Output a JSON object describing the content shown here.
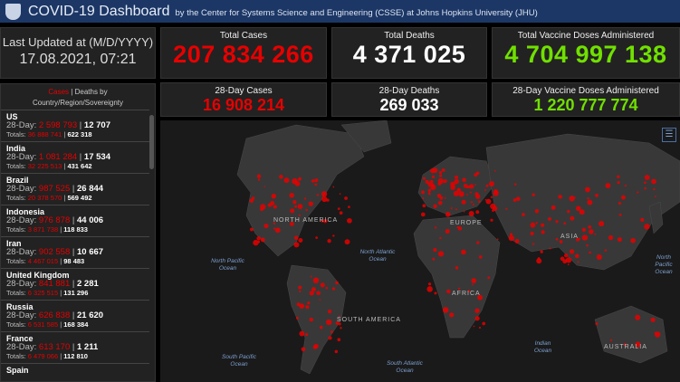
{
  "header": {
    "title": "COVID-19 Dashboard",
    "subtitle": "by the Center for Systems Science and Engineering (CSSE) at Johns Hopkins University (JHU)"
  },
  "last_updated": {
    "label": "Last Updated at (M/D/YYYY)",
    "value": "17.08.2021, 07:21"
  },
  "totals": {
    "cases_label": "Total Cases",
    "cases": "207 834 266",
    "deaths_label": "Total Deaths",
    "deaths": "4 371 025",
    "vaccines_label": "Total Vaccine Doses Administered",
    "vaccines": "4 704 997 138"
  },
  "day28": {
    "cases_label": "28-Day Cases",
    "cases": "16 908 214",
    "deaths_label": "28-Day Deaths",
    "deaths": "269 033",
    "vaccines_label": "28-Day Vaccine Doses Administered",
    "vaccines": "1 220 777 774"
  },
  "sidebar": {
    "cases_word": "Cases",
    "sep": " | ",
    "deaths_word": "Deaths by",
    "sub": "Country/Region/Sovereignty",
    "day_prefix": "28-Day: ",
    "tot_prefix": "Totals: ",
    "items": [
      {
        "name": "US",
        "c28": "2 598 793",
        "d28": "12 707",
        "ct": "36 888 741",
        "dt": "622 318"
      },
      {
        "name": "India",
        "c28": "1 081 284",
        "d28": "17 534",
        "ct": "32 225 513",
        "dt": "431 642"
      },
      {
        "name": "Brazil",
        "c28": "987 525",
        "d28": "26 844",
        "ct": "20 378 570",
        "dt": "569 492"
      },
      {
        "name": "Indonesia",
        "c28": "976 878",
        "d28": "44 006",
        "ct": "3 871 738",
        "dt": "118 833"
      },
      {
        "name": "Iran",
        "c28": "902 558",
        "d28": "10 667",
        "ct": "4 467 015",
        "dt": "98 483"
      },
      {
        "name": "United Kingdom",
        "c28": "841 881",
        "d28": "2 281",
        "ct": "6 325 515",
        "dt": "131 296"
      },
      {
        "name": "Russia",
        "c28": "626 838",
        "d28": "21 620",
        "ct": "6 531 585",
        "dt": "168 384"
      },
      {
        "name": "France",
        "c28": "613 170",
        "d28": "1 211",
        "ct": "6 479 066",
        "dt": "112 810"
      },
      {
        "name": "Spain",
        "c28": "",
        "d28": "",
        "ct": "",
        "dt": ""
      }
    ]
  },
  "map": {
    "continents": [
      "NORTH AMERICA",
      "SOUTH AMERICA",
      "EUROPE",
      "AFRICA",
      "ASIA",
      "AUSTRALIA"
    ],
    "oceans": [
      "North Pacific Ocean",
      "North Atlantic Ocean",
      "South Pacific Ocean",
      "South Atlantic Ocean",
      "Indian Ocean",
      "North Pacific Ocean"
    ],
    "legend_icon": "list-icon",
    "dot_color": "#e60000"
  }
}
